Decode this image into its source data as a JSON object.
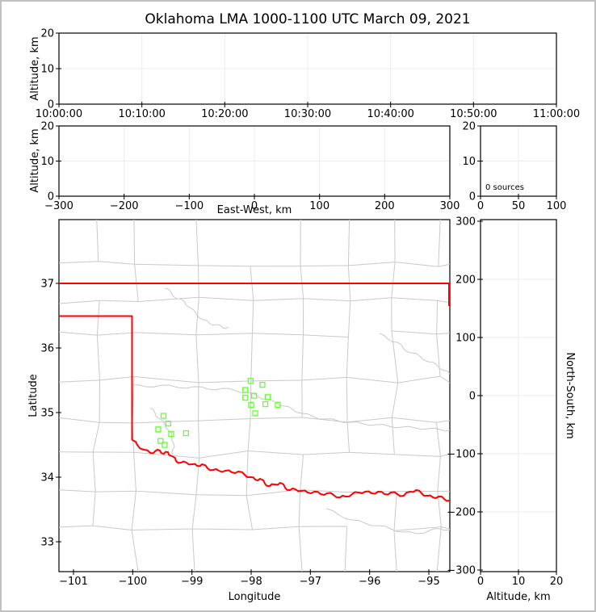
{
  "figure": {
    "title": "Oklahoma LMA 1000-1100 UTC March 09, 2021"
  },
  "colors": {
    "source_marker": "#66ff33",
    "state_border": "#ff0000",
    "county_border": "#c9c9c9",
    "gridline": "#ececec",
    "axis": "#000000",
    "figure_frame": "#c1c1c1"
  },
  "chart_data": [
    {
      "id": "time_height",
      "type": "scatter",
      "title": "Oklahoma LMA 1000-1100 UTC March 09, 2021",
      "xlabel": "",
      "ylabel": "Altitude, km",
      "x_ticks": [
        "10:00:00",
        "10:10:00",
        "10:20:00",
        "10:30:00",
        "10:40:00",
        "10:50:00",
        "11:00:00"
      ],
      "y_ticks": [
        0,
        10,
        20
      ],
      "ylim": [
        0,
        20
      ],
      "grid": "faint",
      "points": []
    },
    {
      "id": "ew_height",
      "type": "scatter",
      "xlabel": "East-West, km",
      "ylabel": "Altitude, km",
      "x_ticks": [
        -300,
        -200,
        -100,
        0,
        100,
        200,
        300
      ],
      "xlim": [
        -300,
        300
      ],
      "y_ticks": [
        0,
        10,
        20
      ],
      "ylim": [
        0,
        20
      ],
      "grid": "faint",
      "points": []
    },
    {
      "id": "alt_histogram",
      "type": "histogram",
      "annotation": "0 sources",
      "x_ticks": [
        0,
        50,
        100
      ],
      "xlim": [
        0,
        100
      ],
      "y_ticks": [
        0,
        10,
        20
      ],
      "ylim": [
        0,
        20
      ],
      "grid": "faint",
      "values": []
    },
    {
      "id": "plan_view_map",
      "type": "scatter",
      "xlabel": "Longitude",
      "ylabel": "Latitude",
      "x_ticks": [
        -101,
        -100,
        -99,
        -98,
        -97,
        -96,
        -95
      ],
      "xlim": [
        -101.25,
        -94.65
      ],
      "y_ticks": [
        33,
        34,
        35,
        36,
        37
      ],
      "ylim": [
        32.55,
        37.99
      ],
      "grid": "off",
      "map_features": [
        "county-borders",
        "rivers",
        "oklahoma-state-border-red"
      ],
      "sources_lonlat": [
        [
          -98.01,
          35.49
        ],
        [
          -97.81,
          35.43
        ],
        [
          -98.1,
          35.35
        ],
        [
          -97.95,
          35.26
        ],
        [
          -98.1,
          35.23
        ],
        [
          -97.72,
          35.24
        ],
        [
          -98.0,
          35.12
        ],
        [
          -97.76,
          35.13
        ],
        [
          -97.55,
          35.12
        ],
        [
          -97.93,
          34.99
        ],
        [
          -99.48,
          34.95
        ],
        [
          -99.4,
          34.83
        ],
        [
          -99.57,
          34.74
        ],
        [
          -99.35,
          34.67
        ],
        [
          -99.1,
          34.68
        ],
        [
          -99.53,
          34.56
        ],
        [
          -99.46,
          34.5
        ]
      ]
    },
    {
      "id": "ns_height",
      "type": "scatter",
      "xlabel": "Altitude, km",
      "ylabel": "North-South, km",
      "x_ticks": [
        0,
        10,
        20
      ],
      "xlim": [
        0,
        20
      ],
      "y_ticks": [
        300,
        200,
        100,
        0,
        -100,
        -200,
        -300
      ],
      "ylim": [
        -300,
        300
      ],
      "grid": "faint",
      "points": []
    }
  ]
}
